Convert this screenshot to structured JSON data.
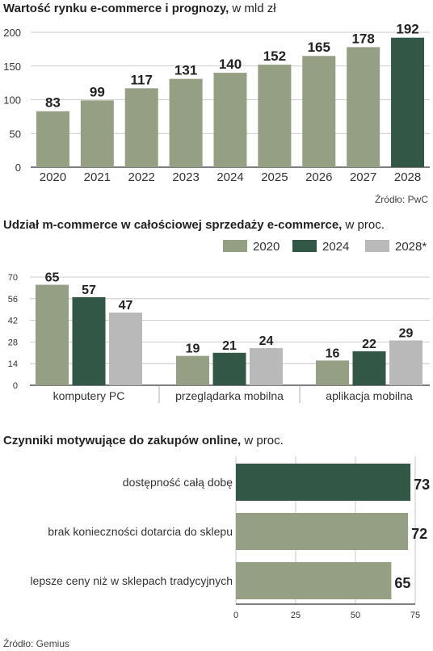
{
  "colors": {
    "light_green": "#949f84",
    "dark_green": "#335746",
    "light_gray": "#b9b9b9",
    "axis": "#333333",
    "grid": "#bdbdbd"
  },
  "chart_data": [
    {
      "type": "bar",
      "title": "Wartość rynku e-commerce i prognozy,",
      "unit": "w mld zł",
      "categories": [
        "2020",
        "2021",
        "2022",
        "2023",
        "2024",
        "2025",
        "2026",
        "2027",
        "2028"
      ],
      "values": [
        83,
        99,
        117,
        131,
        140,
        152,
        165,
        178,
        192
      ],
      "labels": [
        "83",
        "99",
        "117",
        "131",
        "140",
        "152",
        "165",
        "178",
        "192"
      ],
      "highlight_index": 8,
      "ylim": [
        0,
        200
      ],
      "yticks": [
        "0",
        "50",
        "100",
        "150",
        "200"
      ],
      "grid": true,
      "source": "Źródło: PwC"
    },
    {
      "type": "bar",
      "title": "Udział m-commerce w całościowej sprzedaży e-commerce,",
      "unit": "w proc.",
      "categories": [
        "komputery PC",
        "przeglądarka mobilna",
        "aplikacja mobilna"
      ],
      "series": [
        {
          "name": "2020",
          "values": [
            65,
            19,
            16
          ],
          "labels": [
            "65",
            "19",
            "16"
          ]
        },
        {
          "name": "2024",
          "values": [
            57,
            21,
            22
          ],
          "labels": [
            "57",
            "21",
            "22"
          ]
        },
        {
          "name": "2028*",
          "values": [
            47,
            24,
            29
          ],
          "labels": [
            "47",
            "24",
            "29"
          ]
        }
      ],
      "ylim": [
        0,
        70
      ],
      "yticks": [
        "0",
        "14",
        "28",
        "42",
        "56",
        "70"
      ],
      "grid": true,
      "legend": "top-right"
    },
    {
      "type": "bar",
      "orientation": "horizontal",
      "title": "Czynniki motywujące do zakupów online,",
      "unit": "w proc.",
      "categories": [
        "dostępność całą dobę",
        "brak konieczności dotarcia do sklepu",
        "lepsze ceny niż w sklepach tradycyjnych"
      ],
      "values": [
        73,
        72,
        65
      ],
      "labels": [
        "73",
        "72",
        "65"
      ],
      "highlight_index": 0,
      "xlim": [
        0,
        75
      ],
      "xticks": [
        "0",
        "25",
        "50",
        "75"
      ],
      "grid": true,
      "source": "Źródło: Gemius"
    }
  ]
}
